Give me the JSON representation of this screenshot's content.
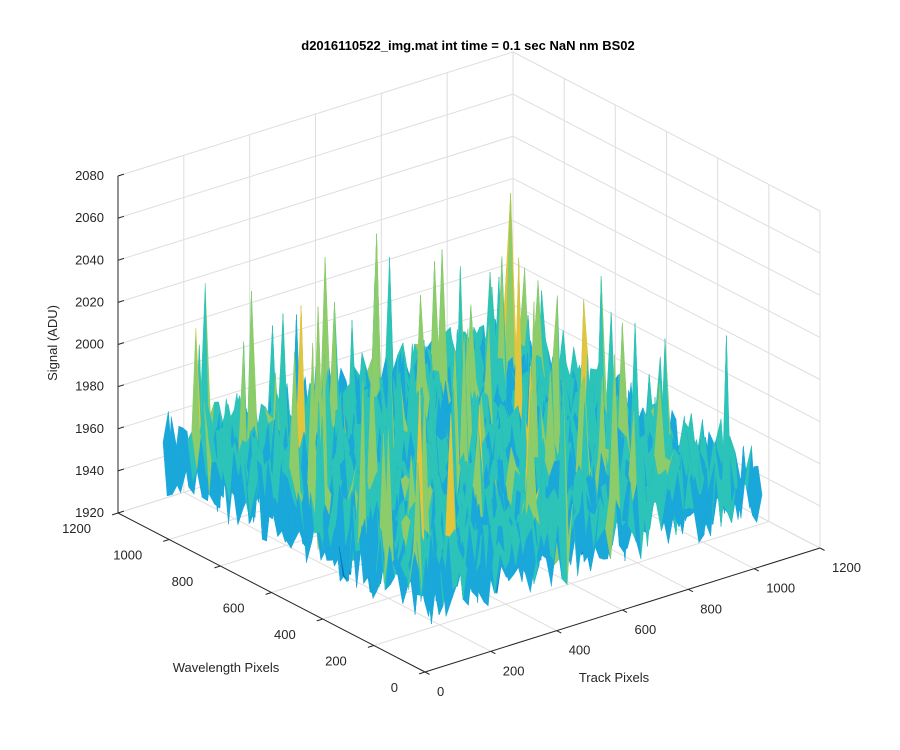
{
  "chart_data": {
    "type": "surface",
    "title": "d2016110522_img.mat int time = 0.1 sec  NaN nm BS02",
    "xlabel": "Track Pixels",
    "ylabel": "Wavelength Pixels",
    "zlabel": "Signal (ADU)",
    "xlim": [
      0,
      1200
    ],
    "ylim": [
      0,
      1200
    ],
    "zlim": [
      1920,
      2080
    ],
    "x_ticks": [
      "0",
      "200",
      "400",
      "600",
      "800",
      "1000",
      "1200"
    ],
    "y_ticks": [
      "0",
      "200",
      "400",
      "600",
      "800",
      "1000",
      "1200"
    ],
    "z_ticks": [
      "1920",
      "1940",
      "1960",
      "1980",
      "2000",
      "2020",
      "2040",
      "2060",
      "2080"
    ],
    "grid": true,
    "colormap": [
      "#0072bd",
      "#1aa7d9",
      "#2cc3b8",
      "#8ccc6a",
      "#e3c53c"
    ],
    "data_extent": {
      "x": [
        0,
        1024
      ],
      "y": [
        0,
        1024
      ]
    },
    "surface_summary": {
      "typical_signal": 1960,
      "typical_range": [
        1935,
        2000
      ],
      "max_spike": 2062
    }
  }
}
